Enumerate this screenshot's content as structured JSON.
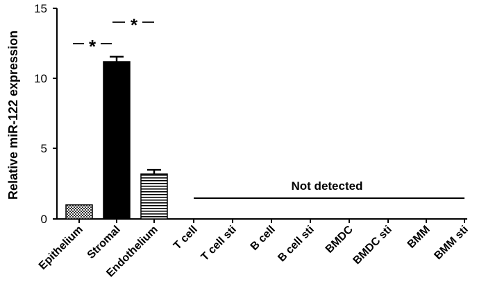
{
  "chart_data": {
    "type": "bar",
    "ylabel": "Relative miR-122 expression",
    "ylim": [
      0,
      15
    ],
    "yticks": [
      "0",
      "5",
      "10",
      "15"
    ],
    "categories": [
      "Epithelium",
      "Stromal",
      "Endothelium",
      "T cell",
      "T cell sti",
      "B cell",
      "B cell sti",
      "BMDC",
      "BMDC sti",
      "BMM",
      "BMM sti"
    ],
    "values": [
      1.0,
      11.2,
      3.2,
      null,
      null,
      null,
      null,
      null,
      null,
      null,
      null
    ],
    "errors": [
      0.0,
      0.35,
      0.3,
      null,
      null,
      null,
      null,
      null,
      null,
      null,
      null
    ],
    "bar_fills": [
      "crosshatch",
      "solid-black",
      "horizontal-stripes"
    ],
    "significance": [
      {
        "between": [
          "Epithelium",
          "Stromal"
        ],
        "label": "*"
      },
      {
        "between": [
          "Stromal",
          "Endothelium"
        ],
        "label": "*"
      }
    ],
    "not_detected": {
      "label": "Not detected",
      "from": "T cell",
      "to": "BMM sti"
    },
    "colors": {
      "bar": "#000000",
      "background": "#ffffff"
    }
  }
}
